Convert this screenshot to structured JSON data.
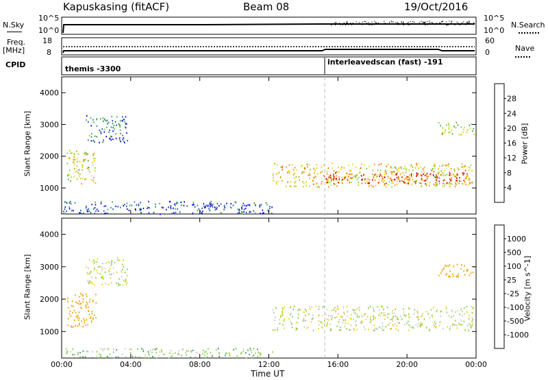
{
  "header": {
    "radar": "Kapuskasing (fitACF)",
    "beam": "Beam 08",
    "date": "19/Oct/2016"
  },
  "top_panels": {
    "nsky_label": "N.Sky",
    "nsky_ticks": [
      "10^5",
      "10^0"
    ],
    "nsky_right_ticks": [
      "10^5",
      "10^0"
    ],
    "nsearch_label": "N.Search",
    "freq_label": "Freq.",
    "freq_unit": "[MHz]",
    "freq_ticks": [
      "18",
      "8"
    ],
    "nave_ticks": [
      "60",
      "0"
    ],
    "nave_label": "Nave",
    "cpid_label": "CPID",
    "cpid_segments": [
      {
        "label": "themis -3300",
        "start_hour": 0
      },
      {
        "label": "interleavedscan (fast) -191",
        "start_hour": 15.35
      }
    ]
  },
  "chart_data": [
    {
      "type": "heatmap",
      "title": "",
      "xlabel": "",
      "ylabel": "Slant Range [km]",
      "xlim_hours": [
        0,
        24
      ],
      "ylim_km": [
        180,
        4500
      ],
      "y_ticks": [
        1000,
        2000,
        3000,
        4000
      ],
      "colorbar": {
        "label": "Power [dB]",
        "ticks": [
          "4",
          "8",
          "12",
          "16",
          "20",
          "24",
          "28"
        ],
        "colors": [
          "#0000ff",
          "#1f4fa8",
          "#2f7f5f",
          "#39a84a",
          "#7fd03a",
          "#c8e020",
          "#f0c000",
          "#f09000",
          "#f06000",
          "#e03000",
          "#d00000"
        ]
      },
      "regions": [
        {
          "hours": [
            0.3,
            2.0
          ],
          "range_km": [
            1150,
            2200
          ],
          "power_db": 16
        },
        {
          "hours": [
            1.4,
            3.8
          ],
          "range_km": [
            2450,
            3300
          ],
          "power_db": 6
        },
        {
          "hours": [
            0,
            12.2
          ],
          "range_km": [
            200,
            600
          ],
          "power_db": 4
        },
        {
          "hours": [
            12.2,
            23.8
          ],
          "range_km": [
            1050,
            1800
          ],
          "power_db": 18
        },
        {
          "hours": [
            15.0,
            23.8
          ],
          "range_km": [
            1150,
            1500
          ],
          "power_db": 26
        },
        {
          "hours": [
            21.8,
            23.9
          ],
          "range_km": [
            2700,
            3100
          ],
          "power_db": 14
        }
      ]
    },
    {
      "type": "heatmap",
      "title": "",
      "xlabel": "Time UT",
      "ylabel": "Slant Range [km]",
      "xlim_hours": [
        0,
        24
      ],
      "ylim_km": [
        180,
        4500
      ],
      "y_ticks": [
        1000,
        2000,
        3000,
        4000
      ],
      "x_tick_labels": [
        "00:00",
        "04:00",
        "08:00",
        "12:00",
        "16:00",
        "20:00",
        "00:00"
      ],
      "colorbar": {
        "label": "Velocity [m s^-1]",
        "ticks": [
          "-1000",
          "-500",
          "-100",
          "-25",
          "25",
          "100",
          "500",
          "1000"
        ],
        "colors": [
          "#e00000",
          "#f06000",
          "#f0a000",
          "#f0d000",
          "#c8c8c0",
          "#80d040",
          "#2f8f5f",
          "#2050a0",
          "#1030c0"
        ]
      },
      "regions": [
        {
          "hours": [
            0.3,
            2.0
          ],
          "range_km": [
            1150,
            2200
          ],
          "velocity_ms": -300
        },
        {
          "hours": [
            1.4,
            3.8
          ],
          "range_km": [
            2450,
            3300
          ],
          "velocity_ms": 0
        },
        {
          "hours": [
            0,
            12.2
          ],
          "range_km": [
            200,
            500
          ],
          "velocity_ms": 50
        },
        {
          "hours": [
            12.2,
            23.8
          ],
          "range_km": [
            1050,
            1800
          ],
          "velocity_ms": 0
        },
        {
          "hours": [
            21.8,
            23.9
          ],
          "range_km": [
            2700,
            3100
          ],
          "velocity_ms": -200
        }
      ]
    }
  ]
}
